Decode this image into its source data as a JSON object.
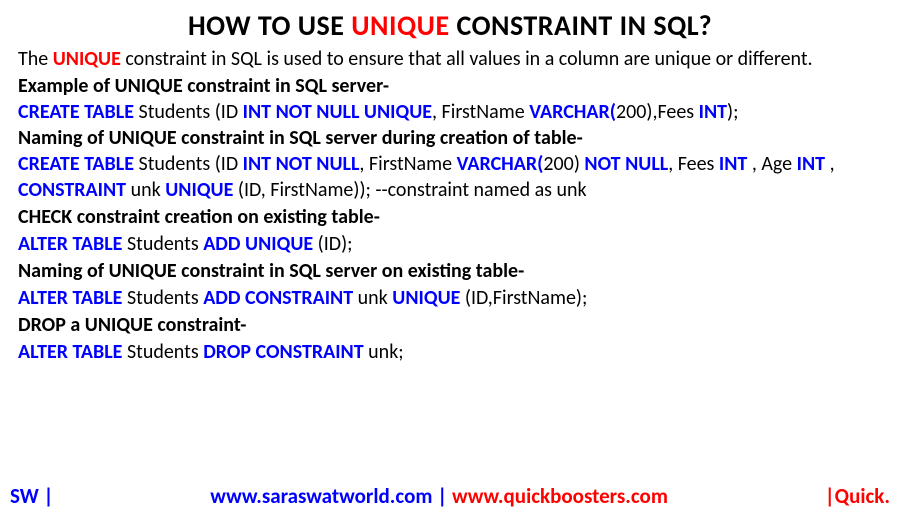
{
  "colors": {
    "red": "#ff0000",
    "blue": "#0000ff",
    "black": "#000000",
    "bg": "#ffffff"
  },
  "title": {
    "pre": "HOW TO USE ",
    "mid": "UNIQUE",
    "post": " CONSTRAINT IN SQL?"
  },
  "intro": {
    "a": "The ",
    "b": "UNIQUE",
    "c": " constraint in SQL is used to ensure that all values in a column are unique or different."
  },
  "h1": "Example of UNIQUE constraint in SQL server-",
  "ex1": {
    "kw1": "CREATE TABLE ",
    "t1": "Students (ID ",
    "kw2": "INT NOT NULL UNIQUE",
    "t2": ", FirstName ",
    "kw3": "VARCHAR(",
    "t3": "200),Fees ",
    "kw4": "INT",
    "t4": ");"
  },
  "h2": "Naming of UNIQUE constraint in SQL server during creation of table-",
  "ex2a": {
    "kw1": "CREATE TABLE ",
    "t1": "Students (ID ",
    "kw2": "INT NOT NULL",
    "t2": ", FirstName ",
    "kw3": "VARCHAR(",
    "t3": "200) ",
    "kw4": "NOT NULL",
    "t4": ", Fees ",
    "kw5": "INT ",
    "t5": ", Age ",
    "kw6": "INT ",
    "t6": ","
  },
  "ex2b": {
    "kw1": "CONSTRAINT ",
    "t1": "unk ",
    "kw2": "UNIQUE ",
    "t2": "(ID, FirstName));  --constraint named as unk"
  },
  "h3": "CHECK constraint creation on existing table-",
  "ex3": {
    "kw1": "ALTER TABLE ",
    "t1": "Students ",
    "kw2": "ADD UNIQUE ",
    "t2": "(ID);"
  },
  "h4": "Naming of UNIQUE constraint in SQL server on existing table-",
  "ex4": {
    "kw1": "ALTER TABLE ",
    "t1": "Students ",
    "kw2": "ADD CONSTRAINT ",
    "t2": "unk ",
    "kw3": "UNIQUE ",
    "t3": "(ID,FirstName);"
  },
  "h5": "DROP a UNIQUE constraint-",
  "ex5": {
    "kw1": "ALTER TABLE ",
    "t1": "Students ",
    "kw2": "DROP CONSTRAINT ",
    "t2": "unk;"
  },
  "footer": {
    "left": "SW |",
    "mid_a": "www.saraswatworld.com ",
    "mid_b": "|",
    "mid_c": " www.quickboosters.com",
    "right": "|Quick."
  }
}
